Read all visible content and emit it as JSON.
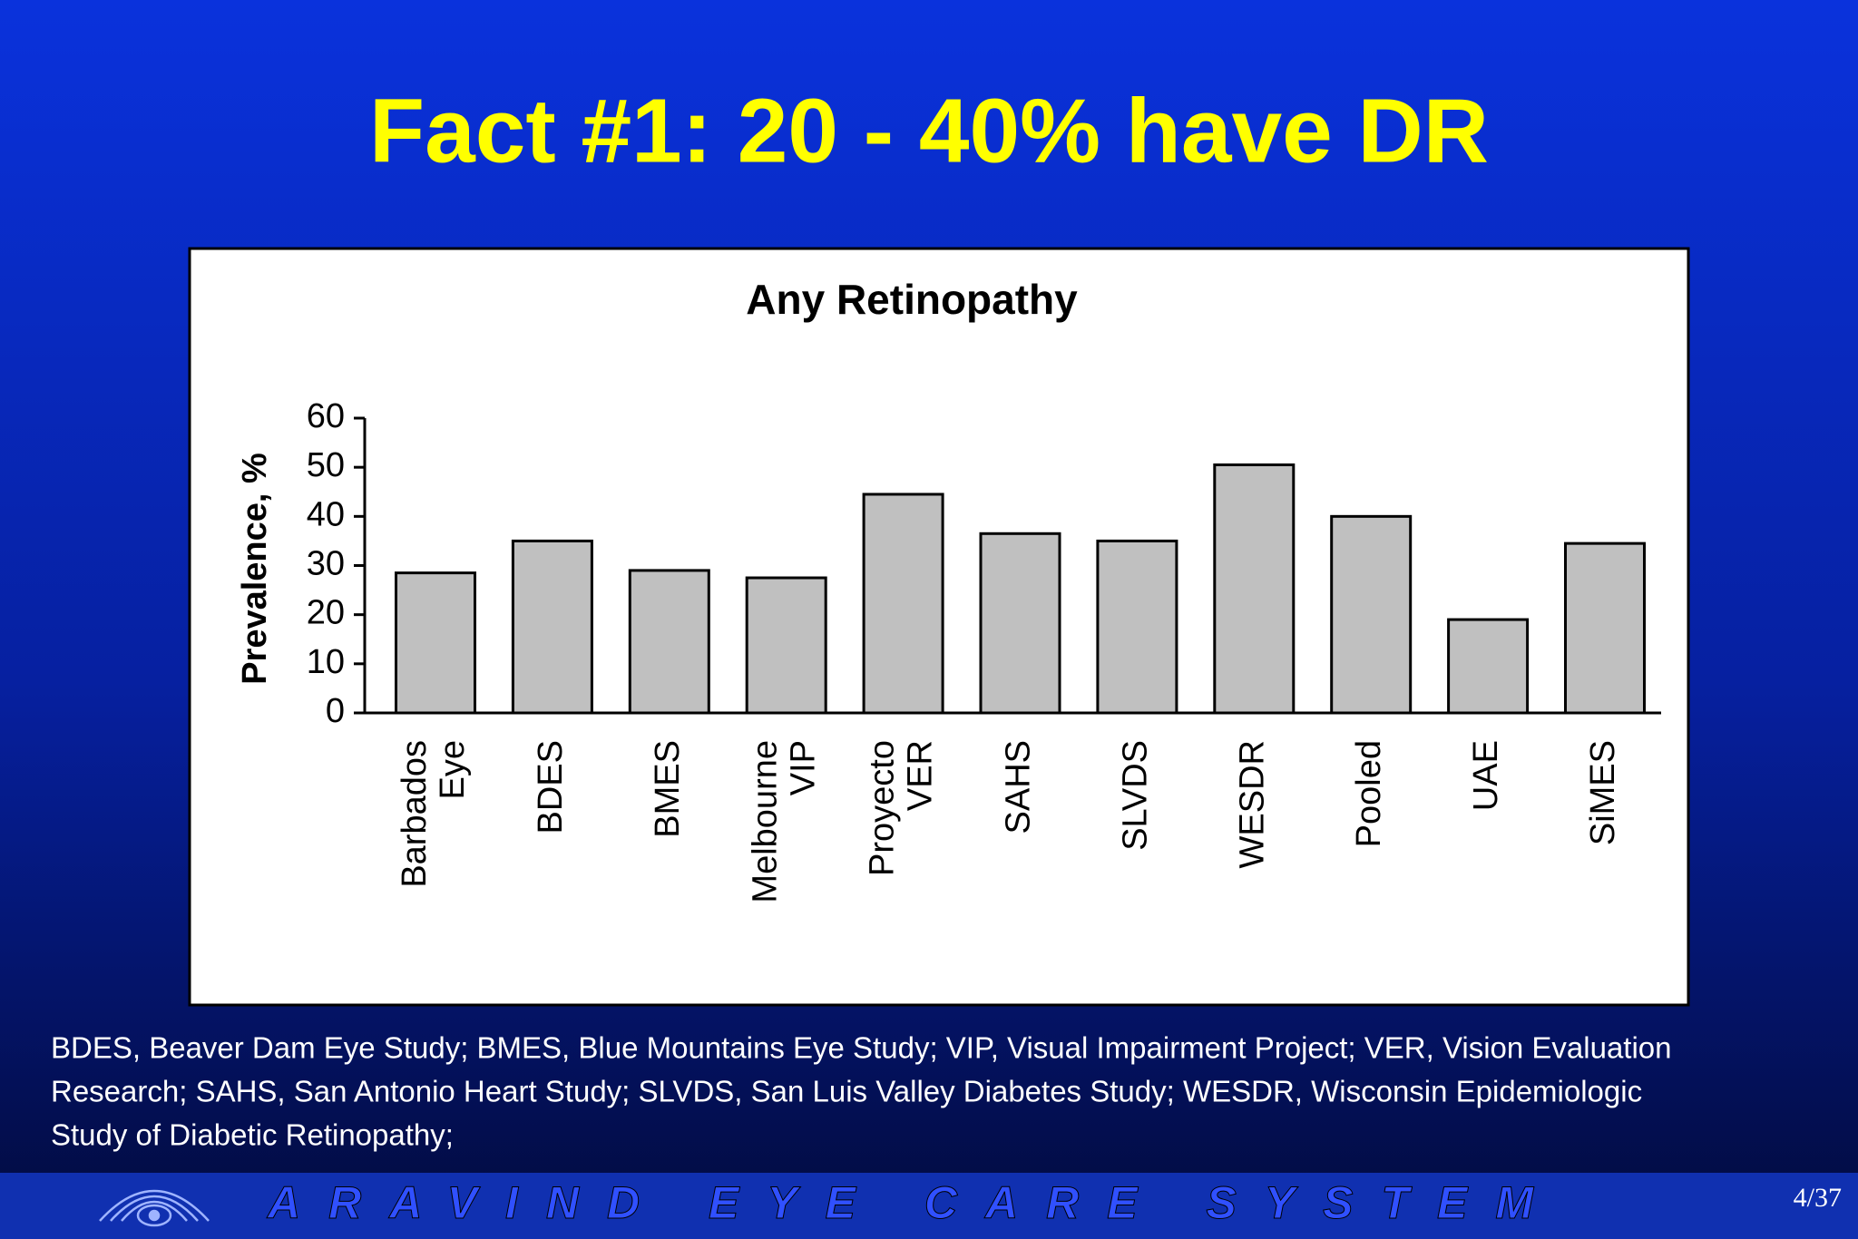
{
  "title": "Fact #1: 20 - 40% have DR",
  "chart_data": {
    "type": "bar",
    "title": "Any Retinopathy",
    "y_label": "Prevalence, %",
    "categories": [
      [
        "Barbados",
        "Eye"
      ],
      [
        "BDES"
      ],
      [
        "BMES"
      ],
      [
        "Melbourne",
        "VIP"
      ],
      [
        "Proyecto",
        "VER"
      ],
      [
        "SAHS"
      ],
      [
        "SLVDS"
      ],
      [
        "WESDR"
      ],
      [
        "Pooled"
      ],
      [
        "UAE"
      ],
      [
        "SiMES"
      ]
    ],
    "values": [
      28.5,
      35,
      29,
      27.5,
      44.5,
      36.5,
      35,
      50.5,
      40,
      19,
      34.5
    ],
    "color": "#c0c0c0",
    "ylim": [
      0,
      60
    ],
    "yticks": [
      0,
      10,
      20,
      30,
      40,
      50,
      60
    ],
    "grid": false
  },
  "footnote": [
    "BDES, Beaver Dam Eye Study; BMES, Blue Mountains Eye Study; VIP, Visual Impairment Project; VER, Vision Evaluation",
    "Research; SAHS, San Antonio Heart Study; SLVDS, San Luis Valley Diabetes Study; WESDR, Wisconsin Epidemiologic",
    "Study of Diabetic Retinopathy;"
  ],
  "footer": {
    "brand": "ARAVIND EYE CARE SYSTEM",
    "page": "4/37"
  }
}
